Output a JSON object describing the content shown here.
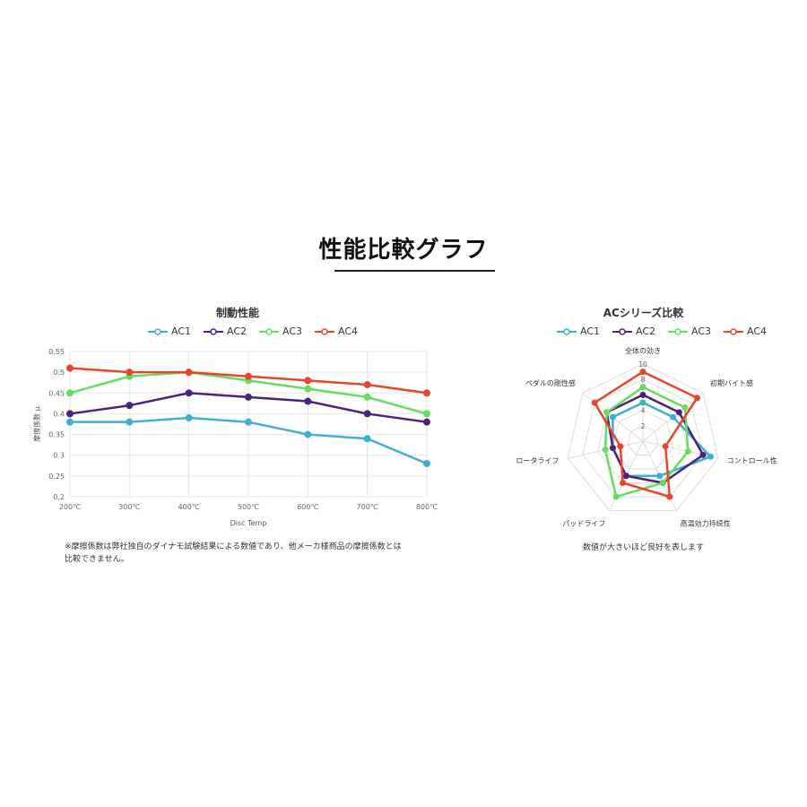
{
  "page": {
    "title": "性能比較グラフ"
  },
  "line_chart": {
    "title": "制動性能",
    "footnote": "※摩擦係数は弊社独自のダイナモ試験結果による数値であり、他メーカ様商品の摩擦係数とは比較できません。"
  },
  "radar_chart": {
    "title": "ACシリーズ比較",
    "caption": "数値が大きいほど良好を表します"
  },
  "legend": [
    "AC1",
    "AC2",
    "AC3",
    "AC4"
  ],
  "colors": {
    "AC1": "#3fb0d0",
    "AC2": "#4b237e",
    "AC3": "#66dd5e",
    "AC4": "#e8452c"
  },
  "chart_data": [
    {
      "type": "line",
      "title": "制動性能",
      "xlabel": "Disc Temp",
      "ylabel": "摩擦係数 μ",
      "categories": [
        "200℃",
        "300℃",
        "400℃",
        "500℃",
        "600℃",
        "700℃",
        "800℃"
      ],
      "ylim": [
        0.2,
        0.55
      ],
      "yticks": [
        "0.2",
        "0.25",
        "0.3",
        "0.35",
        "0.4",
        "0.45",
        "0.5",
        "0.55"
      ],
      "grid": true,
      "legend_position": "top",
      "series": [
        {
          "name": "AC1",
          "values": [
            0.38,
            0.38,
            0.39,
            0.38,
            0.35,
            0.34,
            0.28
          ]
        },
        {
          "name": "AC2",
          "values": [
            0.4,
            0.42,
            0.45,
            0.44,
            0.43,
            0.4,
            0.38
          ]
        },
        {
          "name": "AC3",
          "values": [
            0.45,
            0.49,
            0.5,
            0.48,
            0.46,
            0.44,
            0.4
          ]
        },
        {
          "name": "AC4",
          "values": [
            0.51,
            0.5,
            0.5,
            0.49,
            0.48,
            0.47,
            0.45
          ]
        }
      ]
    },
    {
      "type": "radar",
      "title": "ACシリーズ比較",
      "axes": [
        "全体の効き",
        "初期バイト感",
        "コントロール性",
        "高温効力持続性",
        "パッドライフ",
        "ロータライフ",
        "ペダルの剛性感"
      ],
      "scale": [
        0,
        10
      ],
      "ticks": [
        "2",
        "4",
        "6",
        "8",
        "10"
      ],
      "legend_position": "top",
      "series": [
        {
          "name": "AC1",
          "values": [
            5,
            5,
            9,
            5,
            5,
            4,
            5
          ]
        },
        {
          "name": "AC2",
          "values": [
            6,
            6,
            8,
            6,
            5,
            4,
            6
          ]
        },
        {
          "name": "AC3",
          "values": [
            7,
            7,
            6,
            6,
            8,
            5,
            6
          ]
        },
        {
          "name": "AC4",
          "values": [
            9,
            9,
            3,
            8,
            6,
            3,
            8
          ]
        }
      ]
    }
  ]
}
